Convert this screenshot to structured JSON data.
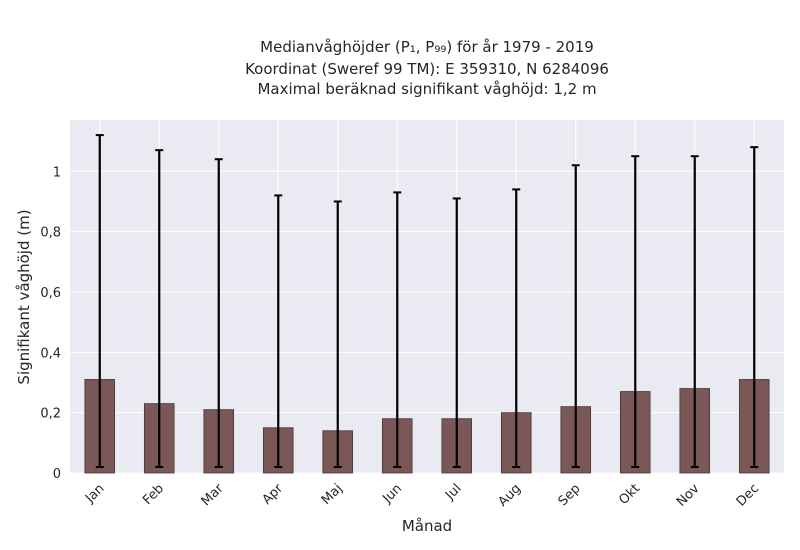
{
  "chart_data": {
    "type": "bar",
    "title_lines": [
      "Medianvåghöjder (P₁, P₉₉) för år 1979 - 2019",
      "Koordinat (Sweref 99 TM): E 359310, N 6284096",
      "Maximal beräknad signifikant våghöjd: 1,2 m"
    ],
    "xlabel": "Månad",
    "ylabel": "Signifikant våghöjd (m)",
    "categories": [
      "Jan",
      "Feb",
      "Mar",
      "Apr",
      "Maj",
      "Jun",
      "Jul",
      "Aug",
      "Sep",
      "Okt",
      "Nov",
      "Dec"
    ],
    "values": [
      0.31,
      0.23,
      0.21,
      0.15,
      0.14,
      0.18,
      0.18,
      0.2,
      0.22,
      0.27,
      0.28,
      0.31
    ],
    "p1": [
      0.02,
      0.02,
      0.02,
      0.02,
      0.02,
      0.02,
      0.02,
      0.02,
      0.02,
      0.02,
      0.02,
      0.02
    ],
    "p99": [
      1.12,
      1.07,
      1.04,
      0.92,
      0.9,
      0.93,
      0.91,
      0.94,
      1.02,
      1.05,
      1.05,
      1.08
    ],
    "ylim": [
      0,
      1.17
    ],
    "yticks": [
      0,
      0.2,
      0.4,
      0.6,
      0.8,
      1
    ],
    "ytick_labels": [
      "0",
      "0,2",
      "0,4",
      "0,6",
      "0,8",
      "1"
    ],
    "grid": true,
    "colors": {
      "bar": "#7b5858",
      "bar_edge": "#4a3535",
      "error_bar": "#000000",
      "plot_background": "#eaeaf2",
      "grid": "#ffffff"
    }
  }
}
